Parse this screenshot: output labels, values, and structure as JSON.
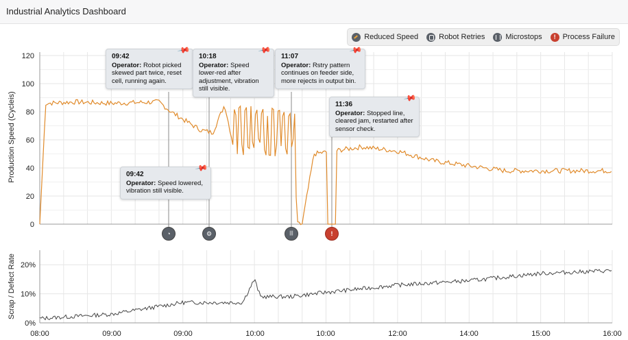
{
  "app": {
    "title": "Industrial Analytics Dashboard"
  },
  "legend": [
    {
      "label": "Reduced Speed",
      "icon": "gauge-icon"
    },
    {
      "label": "Robot Retries",
      "icon": "robot-icon"
    },
    {
      "label": "Microstops",
      "icon": "microstops-icon"
    },
    {
      "label": "Process Failure",
      "icon": "alert-icon"
    }
  ],
  "top_chart": {
    "ylabel": "Production Speed (Cycleis)",
    "yticks": [
      "0",
      "20",
      "40",
      "60",
      "80",
      "100",
      "120"
    ]
  },
  "bottom_chart": {
    "ylabel": "Scrap / Defect Rate",
    "yticks": [
      "0%",
      "10%",
      "20%"
    ],
    "xticks": [
      "08:00",
      "09:00",
      "09:00",
      "10:00",
      "10:00",
      "12:00",
      "14:00",
      "15:00",
      "16:00"
    ]
  },
  "callouts": [
    {
      "time": "09:42",
      "prefix": "Operator:",
      "text": "Robot picked skewed part twice, reset cell, running again."
    },
    {
      "time": "10:18",
      "prefix": "Operator:",
      "text": "Speed lower-red after adjustment, vibration still visible."
    },
    {
      "time": "11:07",
      "prefix": "Operator:",
      "text": "Rstry pattern continues on feeder side, more rejects in output bin."
    },
    {
      "time": "11:36",
      "prefix": "Operator:",
      "text": "Stopped line, cleared jam, restarted after sensor check."
    },
    {
      "time": "09:42",
      "prefix": "Operator:",
      "text": "Speed lowered, vibration still visible."
    }
  ],
  "markers": [
    {
      "type": "Reduced Speed",
      "icon": "gauge-icon",
      "glyph": "◔"
    },
    {
      "type": "Robot Retries",
      "icon": "robot-icon",
      "glyph": "⚙"
    },
    {
      "type": "Microstops",
      "icon": "microstops-icon",
      "glyph": "|||"
    },
    {
      "type": "Process Failure",
      "icon": "alert-icon",
      "glyph": "!"
    }
  ],
  "colors": {
    "speed_line": "#e08a2a",
    "scrap_line": "#444444",
    "failure": "#c8402f",
    "marker": "#5a6068"
  },
  "chart_data": [
    {
      "type": "line",
      "title": "",
      "ylabel": "Production Speed (Cycleis)",
      "ylim": [
        0,
        120
      ],
      "x": [
        "08:00",
        "08:05",
        "08:30",
        "09:00",
        "09:40",
        "09:50",
        "10:05",
        "10:15",
        "10:25",
        "10:35",
        "10:45",
        "11:00",
        "11:10",
        "11:25",
        "11:33",
        "11:36",
        "11:40",
        "11:50",
        "12:30",
        "13:00",
        "13:30",
        "14:30",
        "16:00"
      ],
      "series": [
        {
          "values": [
            0,
            86,
            87,
            86,
            87,
            80,
            72,
            67,
            65,
            85,
            45,
            88,
            60,
            57,
            57,
            0,
            0,
            50,
            55,
            52,
            45,
            38,
            38
          ]
        }
      ],
      "annotations": [
        "09:42",
        "10:18",
        "11:07",
        "11:36",
        "09:42"
      ]
    },
    {
      "type": "line",
      "title": "",
      "ylabel": "Scrap / Defect Rate",
      "ylim": [
        0,
        25
      ],
      "x": [
        "08:00",
        "09:00",
        "10:00",
        "10:50",
        "11:00",
        "11:05",
        "11:30",
        "12:00",
        "13:00",
        "14:00",
        "15:00",
        "16:00"
      ],
      "series": [
        {
          "values": [
            1.5,
            3,
            7,
            7,
            15,
            9,
            9,
            10.5,
            13,
            14.5,
            17,
            18
          ]
        }
      ]
    }
  ]
}
